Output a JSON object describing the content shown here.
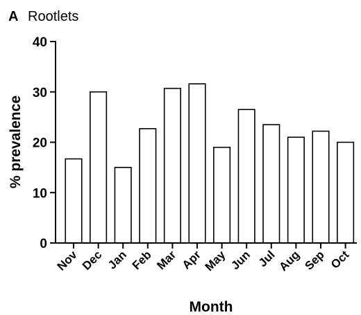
{
  "panel_label": "A",
  "chart_data": {
    "type": "bar",
    "title": "Rootlets",
    "xlabel": "Month",
    "ylabel": "% prevalence",
    "categories": [
      "Nov",
      "Dec",
      "Jan",
      "Feb",
      "Mar",
      "Apr",
      "May",
      "Jun",
      "Jul",
      "Aug",
      "Sep",
      "Oct"
    ],
    "values": [
      16.7,
      30.0,
      15.0,
      22.7,
      30.7,
      31.6,
      19.0,
      26.5,
      23.5,
      21.0,
      22.2,
      20.0
    ],
    "ylim": [
      0,
      40
    ],
    "yticks": [
      "0",
      "10",
      "20",
      "30",
      "40"
    ],
    "grid": false,
    "legend": "none"
  }
}
